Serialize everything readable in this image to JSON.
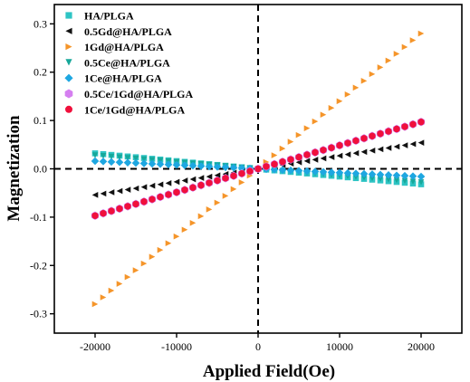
{
  "chart_data": {
    "type": "scatter",
    "xlabel": "Applied Field(Oe)",
    "ylabel": "Magnetization",
    "xlim": [
      -25000,
      25000
    ],
    "ylim": [
      -0.34,
      0.34
    ],
    "xticks": [
      -20000,
      -10000,
      0,
      10000,
      20000
    ],
    "xtick_labels": [
      "-20000",
      "-10000",
      "0",
      "10000",
      "20000"
    ],
    "yticks": [
      -0.3,
      -0.2,
      -0.1,
      0.0,
      0.1,
      0.2,
      0.3
    ],
    "ytick_labels": [
      "-0.3",
      "-0.2",
      "-0.1",
      "0.0",
      "0.1",
      "0.2",
      "0.3"
    ],
    "legend_position": "top-left",
    "grid": false,
    "zero_lines": "dashed",
    "x_range_data": [
      -20000,
      20000
    ],
    "points_per_series": 41,
    "series": [
      {
        "name": "HA/PLGA",
        "marker": "square",
        "color": "#2ec4c4",
        "slope": -1.6e-06,
        "endpoints": [
          [
            -20000,
            0.032
          ],
          [
            20000,
            -0.032
          ]
        ]
      },
      {
        "name": "0.5Gd@HA/PLGA",
        "marker": "triangle-left",
        "color": "#111111",
        "slope": 2.7e-06,
        "endpoints": [
          [
            -20000,
            -0.054
          ],
          [
            20000,
            0.054
          ]
        ]
      },
      {
        "name": "1Gd@HA/PLGA",
        "marker": "triangle-right",
        "color": "#f5952a",
        "slope": 1.4e-05,
        "endpoints": [
          [
            -20000,
            -0.28
          ],
          [
            20000,
            0.28
          ]
        ]
      },
      {
        "name": "0.5Ce@HA/PLGA",
        "marker": "triangle-down",
        "color": "#17a89a",
        "slope": -1.4e-06,
        "endpoints": [
          [
            -20000,
            0.028
          ],
          [
            20000,
            -0.028
          ]
        ]
      },
      {
        "name": "1Ce@HA/PLGA",
        "marker": "diamond",
        "color": "#1ea7e1",
        "slope": -8e-07,
        "endpoints": [
          [
            -20000,
            0.016
          ],
          [
            20000,
            -0.016
          ]
        ]
      },
      {
        "name": "0.5Ce/1Gd@HA/PLGA",
        "marker": "hexagon",
        "color": "#d57ff0",
        "slope": 4.85e-06,
        "endpoints": [
          [
            -20000,
            -0.097
          ],
          [
            20000,
            0.097
          ]
        ]
      },
      {
        "name": "1Ce/1Gd@HA/PLGA",
        "marker": "circle",
        "color": "#f0103c",
        "slope": 4.85e-06,
        "endpoints": [
          [
            -20000,
            -0.097
          ],
          [
            20000,
            0.097
          ]
        ]
      }
    ]
  }
}
